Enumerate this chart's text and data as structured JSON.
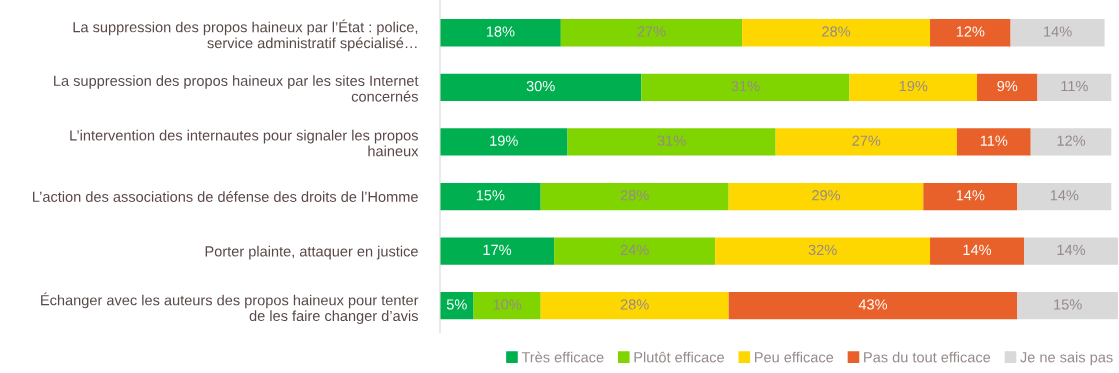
{
  "chart_data": {
    "type": "bar",
    "orientation": "horizontal",
    "stacked": true,
    "legend": "bottom",
    "tick_labels": "y",
    "xlim": [
      0,
      101
    ],
    "categories": [
      "La suppression des propos haineux par l’État : police,\nservice administratif spécialisé…",
      "La suppression des propos haineux par les sites Internet\nconcernés",
      "L’intervention des internautes pour signaler les propos\nhaineux",
      "L’action des associations de défense des droits de l’Homme",
      "Porter plainte, attaquer en justice",
      "Échanger avec les auteurs des propos haineux pour tenter\nde les faire changer d’avis"
    ],
    "series": [
      {
        "name": "Très efficace",
        "color": "#00b050",
        "values": [
          18,
          30,
          19,
          15,
          17,
          5
        ],
        "value_labels": [
          "18%",
          "30%",
          "19%",
          "15%",
          "17%",
          "5%"
        ]
      },
      {
        "name": "Plutôt efficace",
        "color": "#80d400",
        "values": [
          27,
          31,
          31,
          28,
          24,
          10
        ],
        "value_labels": [
          "27%",
          "31%",
          "31%",
          "28%",
          "24%",
          "10%"
        ]
      },
      {
        "name": "Peu efficace",
        "color": "#ffd700",
        "values": [
          28,
          19,
          27,
          29,
          32,
          28
        ],
        "value_labels": [
          "28%",
          "19%",
          "27%",
          "29%",
          "32%",
          "28%"
        ]
      },
      {
        "name": "Pas du tout efficace",
        "color": "#e8602a",
        "values": [
          12,
          9,
          11,
          14,
          14,
          43
        ],
        "value_labels": [
          "12%",
          "9%",
          "11%",
          "14%",
          "14%",
          "43%"
        ]
      },
      {
        "name": "Je ne sais pas",
        "color": "#d9d9d9",
        "values": [
          14,
          11,
          12,
          14,
          14,
          15
        ],
        "value_labels": [
          "14%",
          "11%",
          "12%",
          "14%",
          "14%",
          "15%"
        ]
      }
    ]
  }
}
